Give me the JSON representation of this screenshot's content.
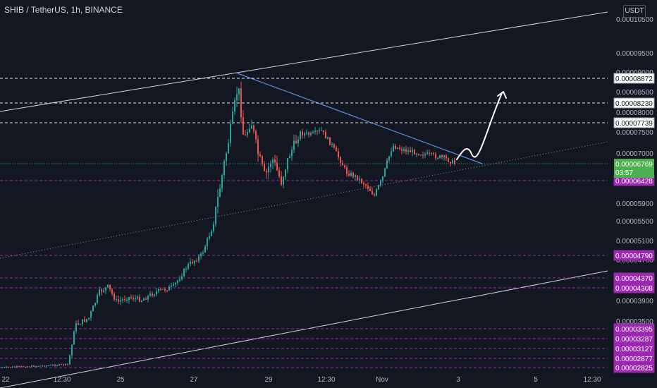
{
  "header": {
    "symbol_title": "SHIB / TetherUS, 1h, BINANCE",
    "currency": "USDT"
  },
  "colors": {
    "background": "#131722",
    "bull": "#26a69a",
    "bear": "#ef5350",
    "axis_text": "#b2b5be",
    "magenta": "#9c27b0",
    "green_label": "#4caf50",
    "trend_blue": "#5b8fd8"
  },
  "chart_data": {
    "type": "candlestick",
    "title": "SHIB / TetherUS, 1h, BINANCE",
    "x_tick_labels": [
      "22",
      "12:30",
      "25",
      "27",
      "29",
      "12:30",
      "Nov",
      "3",
      "5",
      "12:30"
    ],
    "y_tick_labels": [
      "0.00010500",
      "0.00009500",
      "0.00009000",
      "0.00008500",
      "0.00008000",
      "0.00007500",
      "0.00007000",
      "0.00006500",
      "0.00005900",
      "0.00005500",
      "0.00005100",
      "0.00004700",
      "0.00003900",
      "0.00003500"
    ],
    "y_unit": "USDT",
    "last_price": {
      "value": "0.00006769",
      "countdown": "03:57"
    },
    "white_levels": [
      "0.00008872",
      "0.00008230",
      "0.00007739"
    ],
    "magenta_levels": [
      "0.00006428",
      "0.00004790",
      "0.00004370",
      "0.00004308",
      "0.00003395",
      "0.00003287",
      "0.00003127",
      "0.00002877",
      "0.00002825"
    ],
    "grid": false,
    "price_series": [
      {
        "t": 0,
        "p": 2.7e-05
      },
      {
        "t": 30,
        "p": 2.72e-05
      },
      {
        "t": 60,
        "p": 2.74e-05
      },
      {
        "t": 95,
        "p": 2.77e-05
      },
      {
        "t": 105,
        "p": 3.45e-05
      },
      {
        "t": 125,
        "p": 3.6e-05
      },
      {
        "t": 140,
        "p": 4.1e-05
      },
      {
        "t": 152,
        "p": 4.2e-05
      },
      {
        "t": 165,
        "p": 3.9e-05
      },
      {
        "t": 180,
        "p": 4e-05
      },
      {
        "t": 200,
        "p": 3.95e-05
      },
      {
        "t": 220,
        "p": 4.1e-05
      },
      {
        "t": 245,
        "p": 4.2e-05
      },
      {
        "t": 265,
        "p": 4.6e-05
      },
      {
        "t": 285,
        "p": 4.8e-05
      },
      {
        "t": 300,
        "p": 5.4e-05
      },
      {
        "t": 310,
        "p": 6.2e-05
      },
      {
        "t": 322,
        "p": 7.2e-05
      },
      {
        "t": 330,
        "p": 8e-05
      },
      {
        "t": 337,
        "p": 8.7e-05
      },
      {
        "t": 345,
        "p": 7.3e-05
      },
      {
        "t": 355,
        "p": 7.8e-05
      },
      {
        "t": 365,
        "p": 7e-05
      },
      {
        "t": 375,
        "p": 6.5e-05
      },
      {
        "t": 385,
        "p": 6.9e-05
      },
      {
        "t": 398,
        "p": 6.4e-05
      },
      {
        "t": 410,
        "p": 7e-05
      },
      {
        "t": 425,
        "p": 7.5e-05
      },
      {
        "t": 440,
        "p": 7.45e-05
      },
      {
        "t": 455,
        "p": 7.55e-05
      },
      {
        "t": 470,
        "p": 7.2e-05
      },
      {
        "t": 490,
        "p": 6.6e-05
      },
      {
        "t": 505,
        "p": 6.5e-05
      },
      {
        "t": 520,
        "p": 6.3e-05
      },
      {
        "t": 530,
        "p": 6.1e-05
      },
      {
        "t": 542,
        "p": 6.5e-05
      },
      {
        "t": 556,
        "p": 7.2e-05
      },
      {
        "t": 570,
        "p": 7.1e-05
      },
      {
        "t": 585,
        "p": 7.05e-05
      },
      {
        "t": 600,
        "p": 7e-05
      },
      {
        "t": 615,
        "p": 6.95e-05
      },
      {
        "t": 630,
        "p": 6.9e-05
      },
      {
        "t": 645,
        "p": 6.77e-05
      }
    ]
  }
}
